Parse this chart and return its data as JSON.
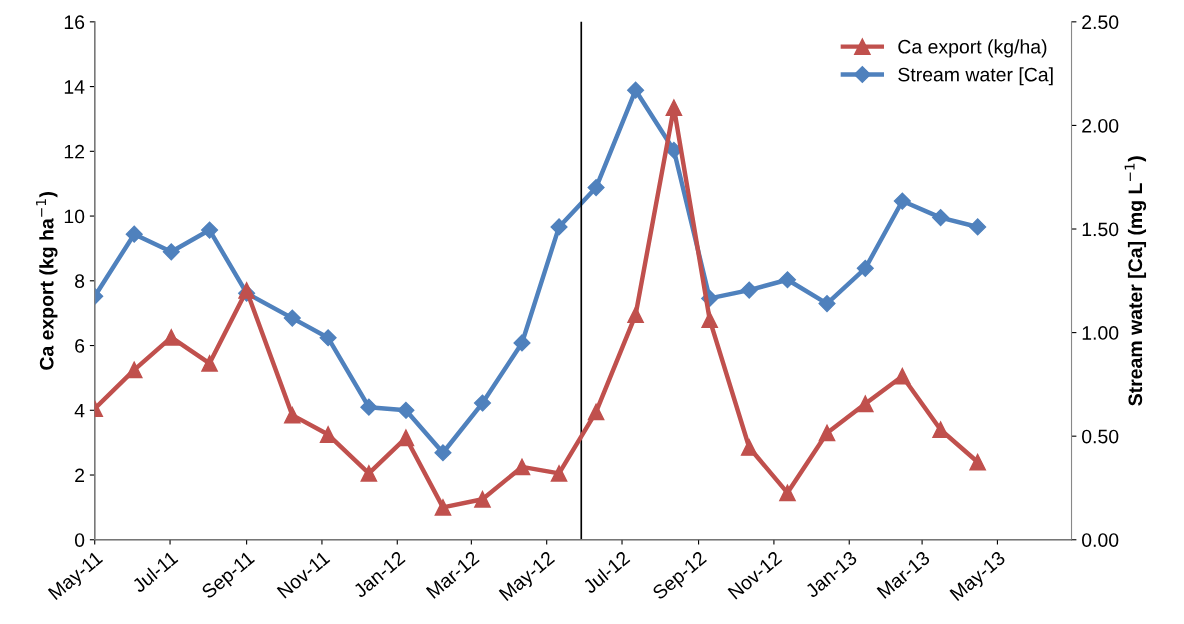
{
  "chart_data": {
    "type": "line",
    "ylabel": "Ca export (kg ha$^{−1}$)",
    "y2label": "Stream water [Ca] (mg L$^{−1}$)",
    "x": [
      "2011-05-01",
      "2011-06-02",
      "2011-07-02",
      "2011-08-02",
      "2011-09-01",
      "2011-10-08",
      "2011-11-06",
      "2011-12-09",
      "2012-01-08",
      "2012-02-07",
      "2012-03-10",
      "2012-04-11",
      "2012-05-11",
      "2012-06-10",
      "2012-07-12",
      "2012-08-12",
      "2012-09-10",
      "2012-10-12",
      "2012-11-12",
      "2012-12-14",
      "2013-01-14",
      "2013-02-13",
      "2013-03-16",
      "2013-04-15"
    ],
    "series": [
      {
        "name": "Ca export (kg/ha)",
        "color": "#c0504d",
        "marker": "triangle",
        "values": [
          4.05,
          5.25,
          6.25,
          5.45,
          7.7,
          3.85,
          3.25,
          2.05,
          3.15,
          1.0,
          1.25,
          2.25,
          2.05,
          3.95,
          6.95,
          13.35,
          6.8,
          2.85,
          1.45,
          3.3,
          4.2,
          5.05,
          3.4,
          2.4
        ]
      },
      {
        "name": "Stream water [Ca]",
        "color": "#4f81bd",
        "marker": "diamond",
        "axis": "y2",
        "values": [
          1.175,
          1.475,
          1.39,
          1.495,
          1.19,
          1.07,
          0.975,
          0.64,
          0.625,
          0.42,
          0.66,
          0.95,
          1.51,
          1.7,
          2.17,
          1.88,
          1.165,
          1.205,
          1.255,
          1.14,
          1.31,
          1.635,
          1.555,
          1.51
        ]
      }
    ],
    "xlim": [
      "2011-05-01",
      "2013-06-30"
    ],
    "xticks": [
      {
        "value": "2011-05-01",
        "label": "May-11"
      },
      {
        "value": "2011-07-01",
        "label": "Jul-11"
      },
      {
        "value": "2011-09-01",
        "label": "Sep-11"
      },
      {
        "value": "2011-11-01",
        "label": "Nov-11"
      },
      {
        "value": "2012-01-01",
        "label": "Jan-12"
      },
      {
        "value": "2012-03-01",
        "label": "Mar-12"
      },
      {
        "value": "2012-05-01",
        "label": "May-12"
      },
      {
        "value": "2012-07-01",
        "label": "Jul-12"
      },
      {
        "value": "2012-09-01",
        "label": "Sep-12"
      },
      {
        "value": "2012-11-01",
        "label": "Nov-12"
      },
      {
        "value": "2013-01-01",
        "label": "Jan-13"
      },
      {
        "value": "2013-03-01",
        "label": "Mar-13"
      },
      {
        "value": "2013-05-01",
        "label": "May-13"
      }
    ],
    "ylim": [
      0,
      16
    ],
    "yticks": [
      0,
      2,
      4,
      6,
      8,
      10,
      12,
      14,
      16
    ],
    "y2lim": [
      0,
      2.5
    ],
    "y2ticks": [
      {
        "value": 0,
        "label": "0.00"
      },
      {
        "value": 0.5,
        "label": "0.50"
      },
      {
        "value": 1,
        "label": "1.00"
      },
      {
        "value": 1.5,
        "label": "1.50"
      },
      {
        "value": 2,
        "label": "2.00"
      },
      {
        "value": 2.5,
        "label": "2.50"
      }
    ],
    "ref_lines": [
      {
        "axis": "x",
        "value": "2012-05-29",
        "color": "#000000"
      }
    ],
    "grid": false,
    "legend": "top right"
  }
}
